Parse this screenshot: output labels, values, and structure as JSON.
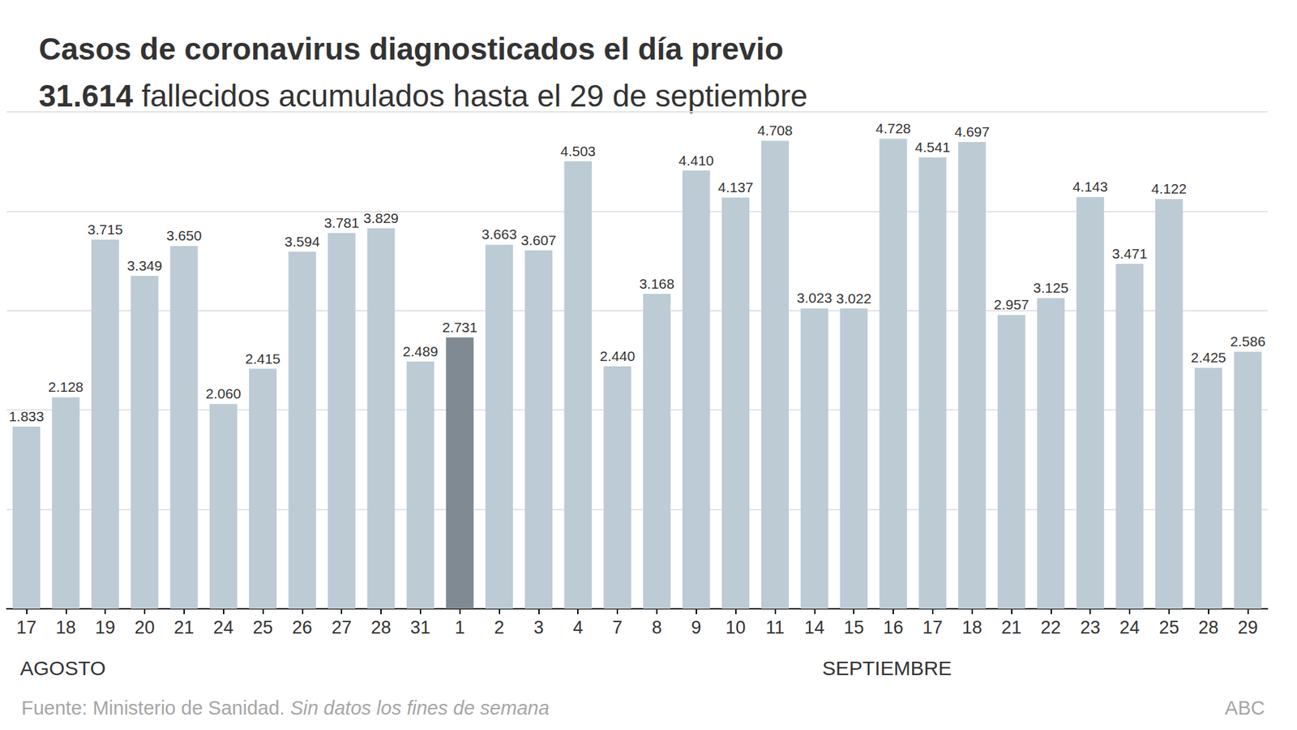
{
  "chart_data": {
    "type": "bar",
    "title": "Casos de coronavirus diagnosticados el día previo",
    "subtitle": "31.614 fallecidos acumulados hasta el 29 de septiembre",
    "categories": [
      "17",
      "18",
      "19",
      "20",
      "21",
      "24",
      "25",
      "26",
      "27",
      "28",
      "31",
      "1",
      "2",
      "3",
      "4",
      "7",
      "8",
      "9",
      "10",
      "11",
      "14",
      "15",
      "16",
      "17",
      "18",
      "21",
      "22",
      "23",
      "24",
      "25",
      "28",
      "29"
    ],
    "values": [
      1833,
      2128,
      3715,
      3349,
      3650,
      2060,
      2415,
      3594,
      3781,
      3829,
      2489,
      2731,
      3663,
      3607,
      4503,
      2440,
      3168,
      4410,
      4137,
      4708,
      3023,
      3022,
      4728,
      4541,
      4697,
      2957,
      3125,
      4143,
      3471,
      4122,
      2425,
      2586
    ],
    "value_labels": [
      "1.833",
      "2.128",
      "3.715",
      "3.349",
      "3.650",
      "2.060",
      "2.415",
      "3.594",
      "3.781",
      "3.829",
      "2.489",
      "2.731",
      "3.663",
      "3.607",
      "4.503",
      "2.440",
      "3.168",
      "4.410",
      "4.137",
      "4.708",
      "3.023",
      "3.022",
      "4.728",
      "4.541",
      "4.697",
      "2.957",
      "3.125",
      "4.143",
      "3.471",
      "4.122",
      "2.425",
      "2.586"
    ],
    "colors": [
      "#bccbd4",
      "#bccbd4",
      "#bccbd4",
      "#bccbd4",
      "#bccbd4",
      "#bccbd4",
      "#bccbd4",
      "#bccbd4",
      "#bccbd4",
      "#bccbd4",
      "#bccbd4",
      "#7f8a93",
      "#bccbd4",
      "#bccbd4",
      "#bccbd4",
      "#bccbd4",
      "#bccbd4",
      "#bccbd4",
      "#bccbd4",
      "#bccbd4",
      "#bccbd4",
      "#bccbd4",
      "#bccbd4",
      "#bccbd4",
      "#bccbd4",
      "#bccbd4",
      "#bccbd4",
      "#bccbd4",
      "#bccbd4",
      "#bccbd4",
      "#bccbd4",
      "#bccbd4"
    ],
    "annotations": [
      "AGOSTO",
      "SEPTIEMBRE"
    ],
    "source": "Fuente: Ministerio de Sanidad.",
    "note": "Sin datos los fines de semana",
    "credit": "ABC",
    "ylim": [
      0,
      5000
    ],
    "yticks": [
      0,
      1000,
      2000,
      3000,
      4000,
      5000
    ],
    "grid": true,
    "data_labels": true,
    "tick_labels": "x"
  }
}
